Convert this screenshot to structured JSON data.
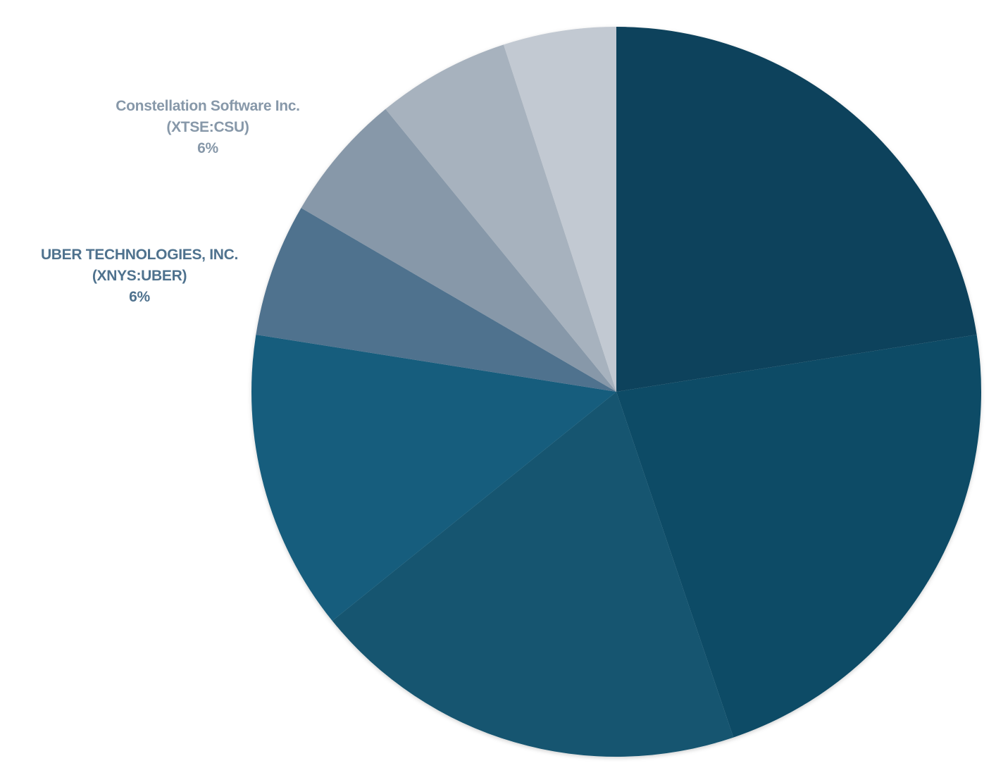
{
  "chart_data": {
    "type": "pie",
    "start_angle_deg": 0,
    "direction": "clockwise",
    "slices": [
      {
        "name": "",
        "value": 22.5,
        "color": "#0c425b",
        "label_lines": []
      },
      {
        "name": "",
        "value": 22.3,
        "color": "#0f4b66",
        "label_lines": []
      },
      {
        "name": "",
        "value": 19.4,
        "color": "#125470",
        "label_lines": []
      },
      {
        "name": "",
        "value": 13.3,
        "color": "#175d7d",
        "label_lines": []
      },
      {
        "name": "UBER TECHNOLOGIES, INC. (XNYS:UBER)",
        "value": 5.9,
        "color": "#4f728e",
        "label_lines": [
          "UBER TECHNOLOGIES, INC.",
          "(XNYS:UBER)",
          "6%"
        ],
        "label_color": "#4f728e"
      },
      {
        "name": "Constellation Software Inc. (XTSE:CSU)",
        "value": 5.7,
        "color": "#8798a9",
        "label_lines": [
          "Constellation Software Inc.",
          "(XTSE:CSU)",
          "6%"
        ],
        "label_color": "#8798a9"
      },
      {
        "name": "",
        "value": 5.9,
        "color": "#a7b2be",
        "label_lines": []
      },
      {
        "name": "",
        "value": 5.0,
        "color": "#c2c9d2",
        "label_lines": []
      }
    ]
  }
}
